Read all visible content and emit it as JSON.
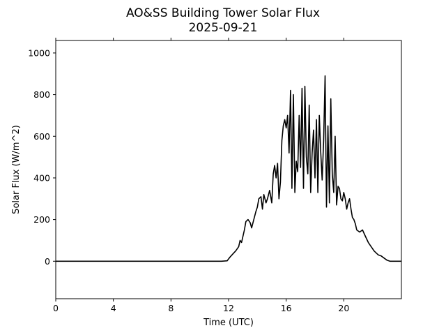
{
  "chart_data": {
    "type": "line",
    "title": "AO&SS Building Tower Solar Flux",
    "subtitle": "2025-09-21",
    "xlabel": "Time (UTC)",
    "ylabel": "Solar Flux (W/m^2)",
    "xlim": [
      0,
      24
    ],
    "ylim": [
      -180,
      1060
    ],
    "xticks": [
      0,
      4,
      8,
      12,
      16,
      20
    ],
    "xtick_labels": [
      "0",
      "4",
      "8",
      "12",
      "16",
      "20"
    ],
    "yticks": [
      0,
      200,
      400,
      600,
      800,
      1000
    ],
    "ytick_labels": [
      "0",
      "200",
      "400",
      "600",
      "800",
      "1000"
    ],
    "grid": false,
    "line_color": "#000000",
    "series": [
      {
        "x": [
          0,
          2,
          4,
          6,
          8,
          10,
          11.5,
          11.9,
          12.1,
          12.3,
          12.5,
          12.7,
          12.8,
          12.9,
          13.1,
          13.2,
          13.35,
          13.5,
          13.6,
          13.75,
          13.9,
          14.0,
          14.1,
          14.25,
          14.35,
          14.45,
          14.6,
          14.7,
          14.85,
          15.0,
          15.1,
          15.2,
          15.3,
          15.4,
          15.5,
          15.6,
          15.7,
          15.8,
          15.9,
          16.0,
          16.1,
          16.2,
          16.3,
          16.4,
          16.5,
          16.6,
          16.7,
          16.8,
          16.9,
          17.0,
          17.1,
          17.2,
          17.3,
          17.4,
          17.5,
          17.6,
          17.7,
          17.8,
          17.9,
          18.0,
          18.1,
          18.2,
          18.3,
          18.4,
          18.5,
          18.6,
          18.7,
          18.8,
          18.9,
          19.0,
          19.1,
          19.2,
          19.3,
          19.4,
          19.5,
          19.6,
          19.7,
          19.8,
          19.9,
          20.0,
          20.1,
          20.2,
          20.3,
          20.4,
          20.5,
          20.6,
          20.7,
          20.8,
          20.9,
          21.1,
          21.3,
          21.5,
          21.7,
          21.9,
          22.0,
          22.1,
          22.25,
          22.4,
          22.6,
          22.8,
          23.0,
          23.2,
          23.4,
          23.6,
          23.8,
          24.0
        ],
        "y": [
          0,
          0,
          0,
          0,
          0,
          0,
          0,
          2,
          20,
          35,
          50,
          70,
          100,
          90,
          150,
          190,
          200,
          185,
          160,
          200,
          240,
          260,
          300,
          310,
          250,
          320,
          280,
          300,
          340,
          280,
          420,
          460,
          400,
          470,
          300,
          380,
          580,
          650,
          680,
          640,
          700,
          520,
          820,
          350,
          800,
          330,
          480,
          430,
          700,
          450,
          830,
          350,
          840,
          500,
          420,
          750,
          330,
          520,
          630,
          400,
          680,
          330,
          700,
          520,
          390,
          580,
          890,
          260,
          650,
          280,
          780,
          420,
          330,
          600,
          270,
          360,
          350,
          300,
          290,
          330,
          300,
          250,
          280,
          300,
          250,
          210,
          200,
          180,
          150,
          140,
          150,
          120,
          90,
          70,
          60,
          50,
          40,
          30,
          25,
          15,
          5,
          0,
          0,
          0,
          0,
          0
        ]
      }
    ]
  }
}
